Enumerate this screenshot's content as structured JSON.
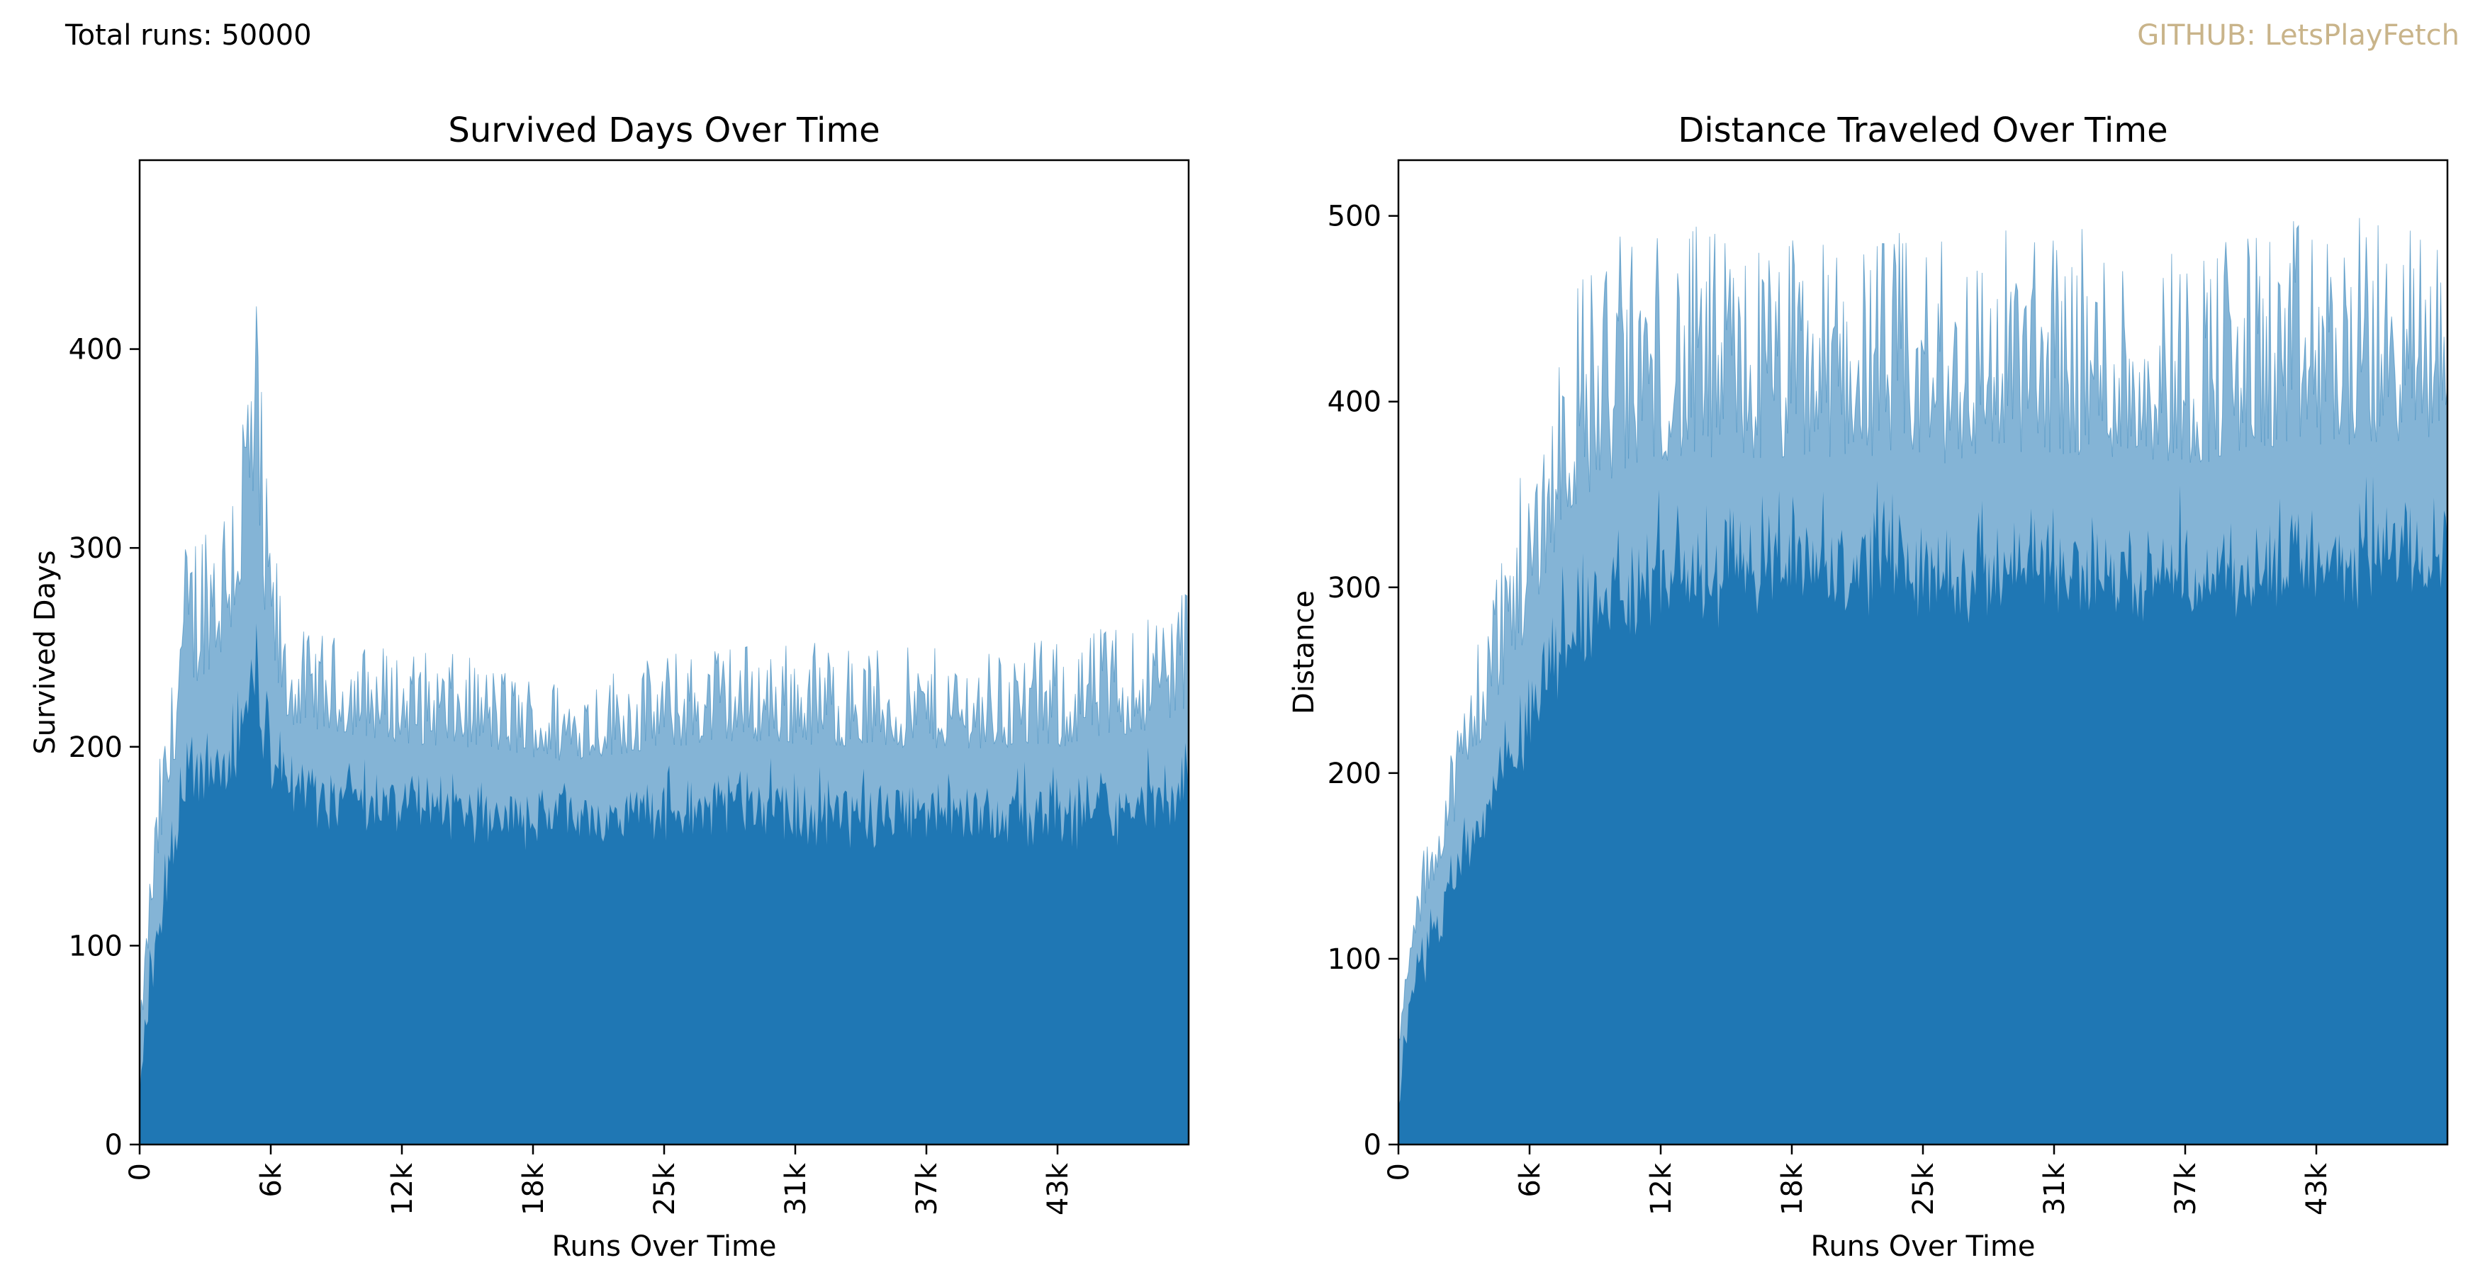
{
  "header": {
    "total_runs_label": "Total runs: 50000",
    "credit_label": "GITHUB: LetsPlayFetch",
    "credit_color": "#c9b48a"
  },
  "chart_data": [
    {
      "type": "area",
      "title": "Survived Days Over Time",
      "xlabel": "Runs Over Time",
      "ylabel": "Survived Days",
      "x_tick_labels": [
        "0",
        "6k",
        "12k",
        "18k",
        "25k",
        "31k",
        "37k",
        "43k"
      ],
      "x_tick_values": [
        0,
        6250,
        12500,
        18750,
        25000,
        31250,
        37500,
        43750
      ],
      "xlim": [
        0,
        50000
      ],
      "y_tick_labels": [
        "0",
        "100",
        "200",
        "300",
        "400"
      ],
      "y_tick_values": [
        0,
        100,
        200,
        300,
        400
      ],
      "ylim": [
        0,
        495
      ],
      "grid": false,
      "color": "#1f77b4",
      "base_series": {
        "x": [
          0,
          500,
          1000,
          1500,
          2000,
          3000,
          4000,
          5000,
          5500,
          6000,
          7000,
          10000,
          13000,
          16000,
          20000,
          24000,
          28000,
          32000,
          36000,
          40000,
          44000,
          48000,
          50000
        ],
        "values": [
          40,
          90,
          120,
          150,
          175,
          185,
          195,
          210,
          235,
          205,
          185,
          180,
          175,
          175,
          170,
          172,
          175,
          172,
          172,
          172,
          170,
          175,
          180
        ]
      },
      "peak_series": {
        "x": [
          0,
          500,
          1000,
          1500,
          2000,
          3000,
          4000,
          5000,
          5500,
          6000,
          7000,
          10000,
          13000,
          16000,
          20000,
          24000,
          28000,
          32000,
          36000,
          40000,
          44000,
          48000,
          50000
        ],
        "values": [
          60,
          140,
          200,
          230,
          300,
          330,
          340,
          400,
          450,
          340,
          260,
          255,
          250,
          245,
          235,
          245,
          255,
          255,
          250,
          250,
          255,
          270,
          290
        ]
      }
    },
    {
      "type": "area",
      "title": "Distance Traveled Over Time",
      "xlabel": "Runs Over Time",
      "ylabel": "Distance",
      "x_tick_labels": [
        "0",
        "6k",
        "12k",
        "18k",
        "25k",
        "31k",
        "37k",
        "43k"
      ],
      "x_tick_values": [
        0,
        6250,
        12500,
        18750,
        25000,
        31250,
        37500,
        43750
      ],
      "xlim": [
        0,
        50000
      ],
      "y_tick_labels": [
        "0",
        "100",
        "200",
        "300",
        "400",
        "500"
      ],
      "y_tick_values": [
        0,
        100,
        200,
        300,
        400,
        500
      ],
      "ylim": [
        0,
        530
      ],
      "grid": false,
      "color": "#1f77b4",
      "base_series": {
        "x": [
          0,
          500,
          1000,
          2000,
          3000,
          4000,
          5000,
          6000,
          7000,
          8000,
          9000,
          10000,
          12000,
          15000,
          18000,
          22000,
          26000,
          30000,
          34000,
          38000,
          42000,
          46000,
          50000
        ],
        "values": [
          40,
          80,
          100,
          130,
          155,
          180,
          200,
          220,
          250,
          270,
          280,
          285,
          300,
          300,
          300,
          305,
          300,
          305,
          305,
          300,
          305,
          310,
          320
        ]
      },
      "peak_series": {
        "x": [
          0,
          500,
          1000,
          2000,
          3000,
          4000,
          5000,
          6000,
          7000,
          8000,
          9000,
          10000,
          12000,
          15000,
          18000,
          22000,
          26000,
          30000,
          34000,
          38000,
          42000,
          46000,
          50000
        ],
        "values": [
          60,
          110,
          150,
          195,
          240,
          290,
          335,
          365,
          410,
          460,
          480,
          490,
          495,
          495,
          490,
          495,
          490,
          500,
          490,
          490,
          500,
          500,
          495
        ]
      }
    }
  ]
}
